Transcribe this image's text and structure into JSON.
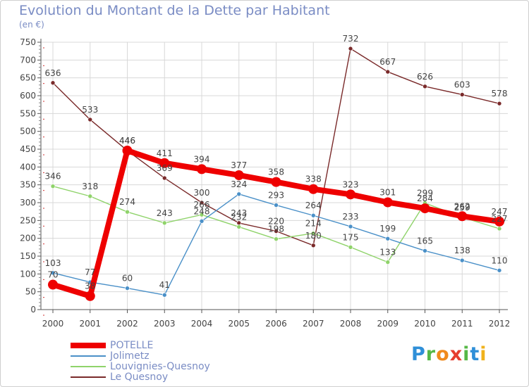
{
  "title": "Evolution du Montant de la Dette par Habitant",
  "subtitle": "(en €)",
  "logo": {
    "text": "Proxiti",
    "letters": [
      {
        "ch": "P",
        "color": "#2f8fd8"
      },
      {
        "ch": "r",
        "color": "#56b847"
      },
      {
        "ch": "o",
        "color": "#f08a1c"
      },
      {
        "ch": "x",
        "color": "#e63d2f"
      },
      {
        "ch": "i",
        "color": "#56b847"
      },
      {
        "ch": "t",
        "color": "#2f8fd8"
      },
      {
        "ch": "i",
        "color": "#f0b21c"
      }
    ]
  },
  "chart_data": {
    "type": "line",
    "title": "Evolution du Montant de la Dette par Habitant",
    "ylabel": "(en €)",
    "xlabel": "",
    "ylim": [
      0,
      750
    ],
    "yticks": [
      0,
      50,
      100,
      150,
      200,
      250,
      300,
      350,
      400,
      450,
      500,
      550,
      600,
      650,
      700,
      750
    ],
    "categories": [
      "2000",
      "2001",
      "2002",
      "2003",
      "2004",
      "2005",
      "2006",
      "2007",
      "2008",
      "2009",
      "2010",
      "2011",
      "2012"
    ],
    "grid": true,
    "legend_position": "bottom-left",
    "series": [
      {
        "name": "Le Quesnoy",
        "color": "#7a2a2a",
        "values": [
          636,
          533,
          446,
          369,
          300,
          243,
          220,
          180,
          732,
          667,
          626,
          603,
          578
        ]
      },
      {
        "name": "Louvignies-Quesnoy",
        "color": "#8fd36a",
        "values": [
          346,
          318,
          274,
          243,
          266,
          232,
          198,
          214,
          175,
          133,
          299,
          259,
          227
        ]
      },
      {
        "name": "Jolimetz",
        "color": "#4a90c8",
        "values": [
          103,
          77,
          60,
          41,
          248,
          324,
          293,
          264,
          233,
          199,
          165,
          138,
          110
        ]
      },
      {
        "name": "POTELLE",
        "color": "#ee0000",
        "values": [
          70,
          38,
          446,
          411,
          394,
          377,
          358,
          338,
          323,
          301,
          284,
          262,
          247
        ]
      }
    ],
    "legend_order": [
      "POTELLE",
      "Jolimetz",
      "Louvignies-Quesnoy",
      "Le Quesnoy"
    ]
  }
}
